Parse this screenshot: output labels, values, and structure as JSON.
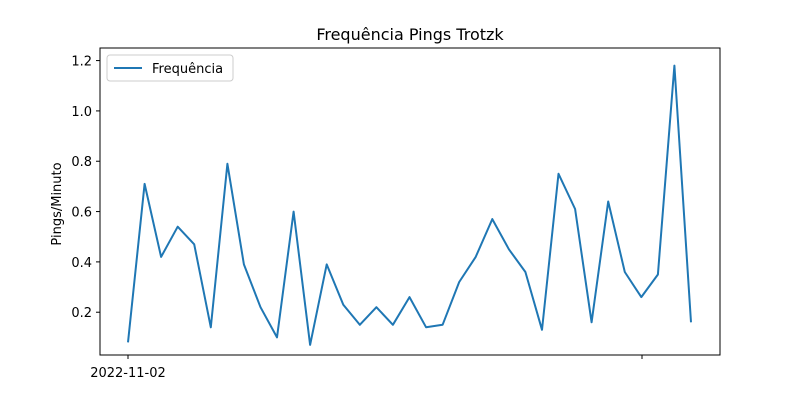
{
  "chart_data": {
    "type": "line",
    "title": "Frequência Pings Trotzk",
    "xlabel": "",
    "ylabel": "Pings/Minuto",
    "x_tick_labels": [
      "2022-11-02",
      ""
    ],
    "y_ticks": [
      0.2,
      0.4,
      0.6,
      0.8,
      1.0,
      1.2
    ],
    "y_tick_labels": [
      "0.2",
      "0.4",
      "0.6",
      "0.8",
      "1.0",
      "1.2"
    ],
    "ylim": [
      0.03,
      1.25
    ],
    "grid": false,
    "legend_position": "upper-left",
    "series": [
      {
        "name": "Frequência",
        "color": "#1f77b4",
        "values": [
          0.08,
          0.71,
          0.42,
          0.54,
          0.47,
          0.14,
          0.79,
          0.39,
          0.22,
          0.1,
          0.6,
          0.07,
          0.39,
          0.23,
          0.15,
          0.22,
          0.15,
          0.26,
          0.14,
          0.15,
          0.32,
          0.42,
          0.57,
          0.45,
          0.36,
          0.13,
          0.75,
          0.61,
          0.16,
          0.64,
          0.36,
          0.26,
          0.35,
          1.18,
          0.16
        ]
      }
    ]
  }
}
